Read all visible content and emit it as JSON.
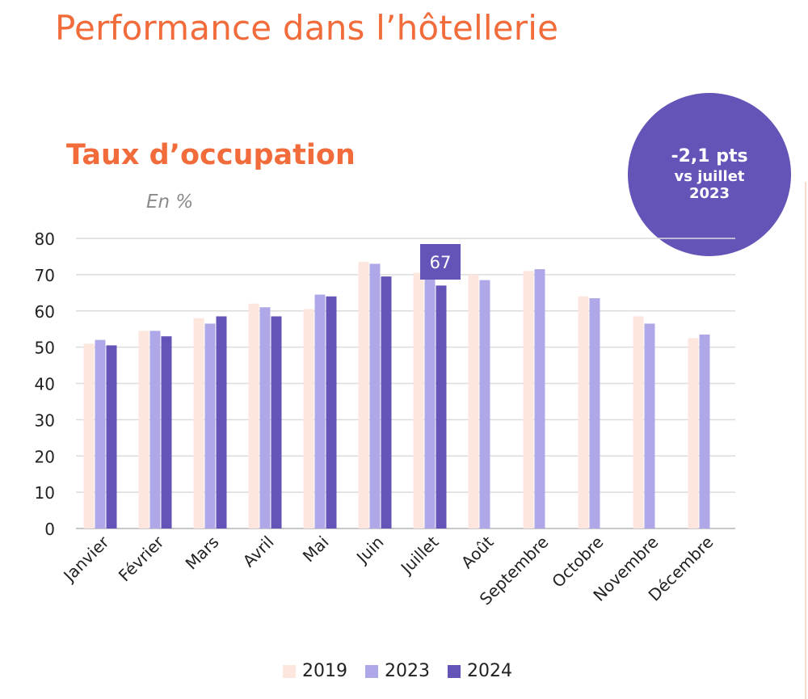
{
  "header": {
    "title": "Performance dans l’hôtellerie"
  },
  "chart_data": {
    "type": "bar",
    "title": "Taux d’occupation",
    "unit_label": "En %",
    "ylim": [
      0,
      80
    ],
    "yticks": [
      0,
      10,
      20,
      30,
      40,
      50,
      60,
      70,
      80
    ],
    "grid": true,
    "legend_position": "bottom",
    "categories": [
      "Janvier",
      "Février",
      "Mars",
      "Avril",
      "Mai",
      "Juin",
      "Juillet",
      "Août",
      "Septembre",
      "Octobre",
      "Novembre",
      "Décembre"
    ],
    "series": [
      {
        "name": "2019",
        "color": "#fde6de",
        "values": [
          51,
          54.5,
          58,
          62,
          60.5,
          73.5,
          70.5,
          70,
          71,
          64,
          58.5,
          52.5
        ]
      },
      {
        "name": "2023",
        "color": "#afa8e8",
        "values": [
          52,
          54.5,
          56.5,
          61,
          64.5,
          73,
          69,
          68.5,
          71.5,
          63.5,
          56.5,
          53.5
        ]
      },
      {
        "name": "2024",
        "color": "#6554b8",
        "values": [
          50.5,
          53,
          58.5,
          58.5,
          64,
          69.5,
          67,
          null,
          null,
          null,
          null,
          null
        ]
      }
    ],
    "annotation": {
      "category": "Juillet",
      "series": "2024",
      "label": "67"
    }
  },
  "badge": {
    "line1": "-2,1 pts",
    "line2": "vs juillet",
    "line3": "2023"
  }
}
